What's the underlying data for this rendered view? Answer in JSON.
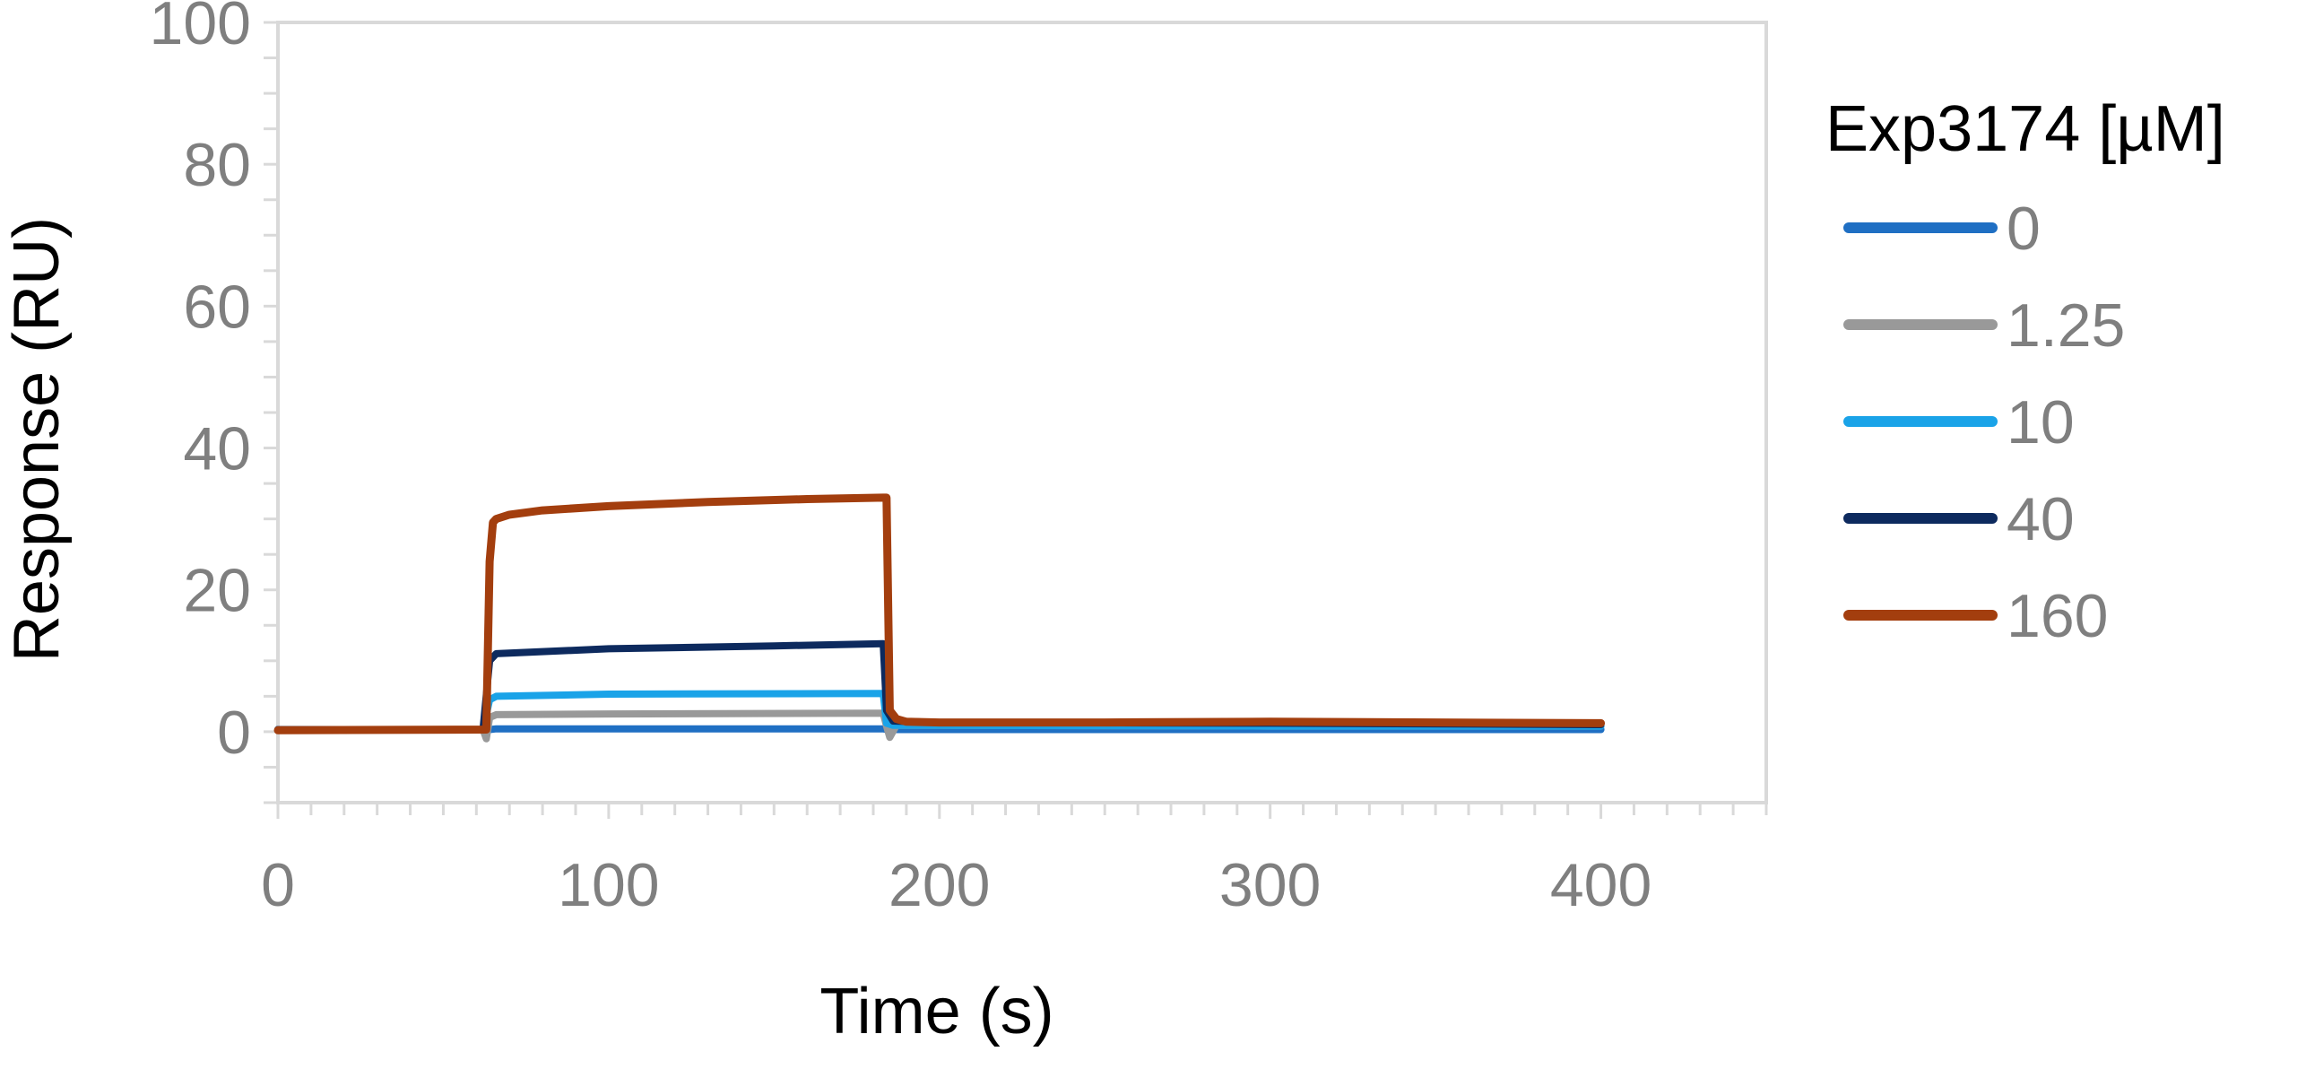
{
  "chart_data": {
    "type": "line",
    "title": "",
    "xlabel": "Time (s)",
    "ylabel": "Response (RU)",
    "xlim": [
      0,
      450
    ],
    "ylim": [
      -10,
      100
    ],
    "x_ticks": [
      0,
      100,
      200,
      300,
      400
    ],
    "y_ticks": [
      0,
      20,
      40,
      60,
      80,
      100
    ],
    "grid": false,
    "legend": {
      "title": "Exp3174 [µM]",
      "placement": "right"
    },
    "series": [
      {
        "name": "0",
        "color": "#1f6fc3",
        "x": [
          0,
          62,
          64,
          66,
          100,
          183,
          184,
          186,
          200,
          300,
          400
        ],
        "y": [
          0.3,
          0.3,
          0.3,
          0.4,
          0.4,
          0.4,
          0.3,
          0.3,
          0.3,
          0.3,
          0.3
        ]
      },
      {
        "name": "1.25",
        "color": "#999999",
        "x": [
          0,
          62,
          63,
          64,
          66,
          100,
          183,
          184,
          185,
          187,
          200,
          300,
          400
        ],
        "y": [
          0.3,
          0.3,
          -1.0,
          2.0,
          2.4,
          2.5,
          2.6,
          0.8,
          -0.8,
          0.9,
          0.9,
          0.8,
          0.8
        ]
      },
      {
        "name": "10",
        "color": "#1aa3e8",
        "x": [
          0,
          62,
          64,
          66,
          100,
          183,
          184,
          186,
          200,
          300,
          400
        ],
        "y": [
          0.3,
          0.3,
          4.5,
          5.0,
          5.3,
          5.4,
          1.2,
          0.9,
          0.9,
          0.8,
          0.8
        ]
      },
      {
        "name": "40",
        "color": "#0d2a5e",
        "x": [
          0,
          62,
          64,
          66,
          100,
          150,
          183,
          184,
          186,
          200,
          300,
          400
        ],
        "y": [
          0.3,
          0.3,
          10.0,
          11.0,
          11.7,
          12.1,
          12.4,
          3.0,
          1.5,
          1.3,
          1.2,
          1.0
        ]
      },
      {
        "name": "160",
        "color": "#a33e0e",
        "x": [
          0,
          62,
          63,
          64,
          65,
          66,
          70,
          80,
          100,
          130,
          160,
          183,
          184,
          185,
          187,
          190,
          200,
          250,
          300,
          350,
          400
        ],
        "y": [
          0.2,
          0.3,
          0.3,
          24.0,
          29.5,
          30.0,
          30.6,
          31.2,
          31.8,
          32.4,
          32.8,
          33.0,
          33.0,
          3.0,
          1.8,
          1.4,
          1.3,
          1.3,
          1.4,
          1.3,
          1.2
        ]
      }
    ]
  }
}
